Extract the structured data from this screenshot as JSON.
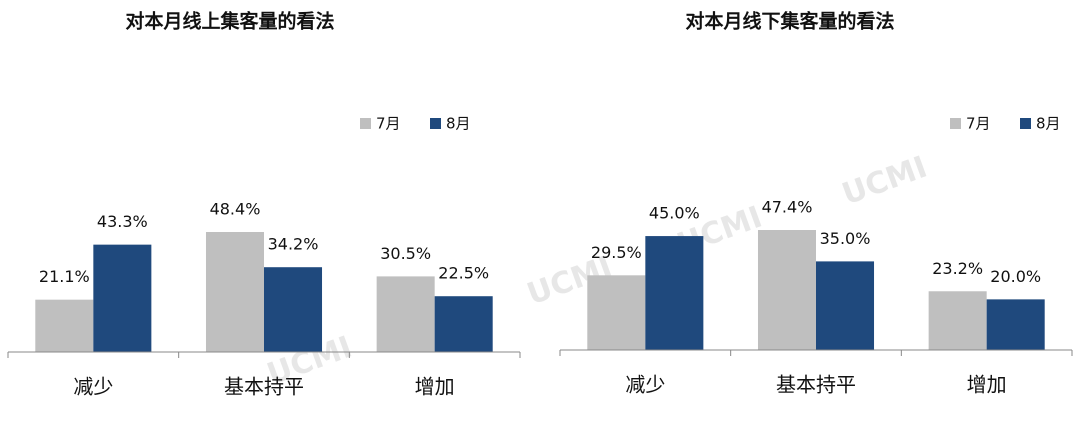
{
  "chart_data": [
    {
      "type": "bar",
      "title": "对本月线上集客量的看法",
      "watermark": "UCMI",
      "categories": [
        "减少",
        "基本持平",
        "增加"
      ],
      "series": [
        {
          "name": "7月",
          "color": "#bfbfbf",
          "values": [
            21.1,
            48.4,
            30.5
          ],
          "value_labels": [
            "21.1%",
            "48.4%",
            "30.5%"
          ]
        },
        {
          "name": "8月",
          "color": "#1f497d",
          "values": [
            43.3,
            34.2,
            22.5
          ],
          "value_labels": [
            "43.3%",
            "34.2%",
            "22.5%"
          ]
        }
      ]
    },
    {
      "type": "bar",
      "title": "对本月线下集客量的看法",
      "watermark": "UCMI",
      "categories": [
        "减少",
        "基本持平",
        "增加"
      ],
      "series": [
        {
          "name": "7月",
          "color": "#bfbfbf",
          "values": [
            29.5,
            47.4,
            23.2
          ],
          "value_labels": [
            "29.5%",
            "47.4%",
            "23.2%"
          ]
        },
        {
          "name": "8月",
          "color": "#1f497d",
          "values": [
            45.0,
            35.0,
            20.0
          ],
          "value_labels": [
            "45.0%",
            "35.0%",
            "20.0%"
          ]
        }
      ]
    }
  ]
}
